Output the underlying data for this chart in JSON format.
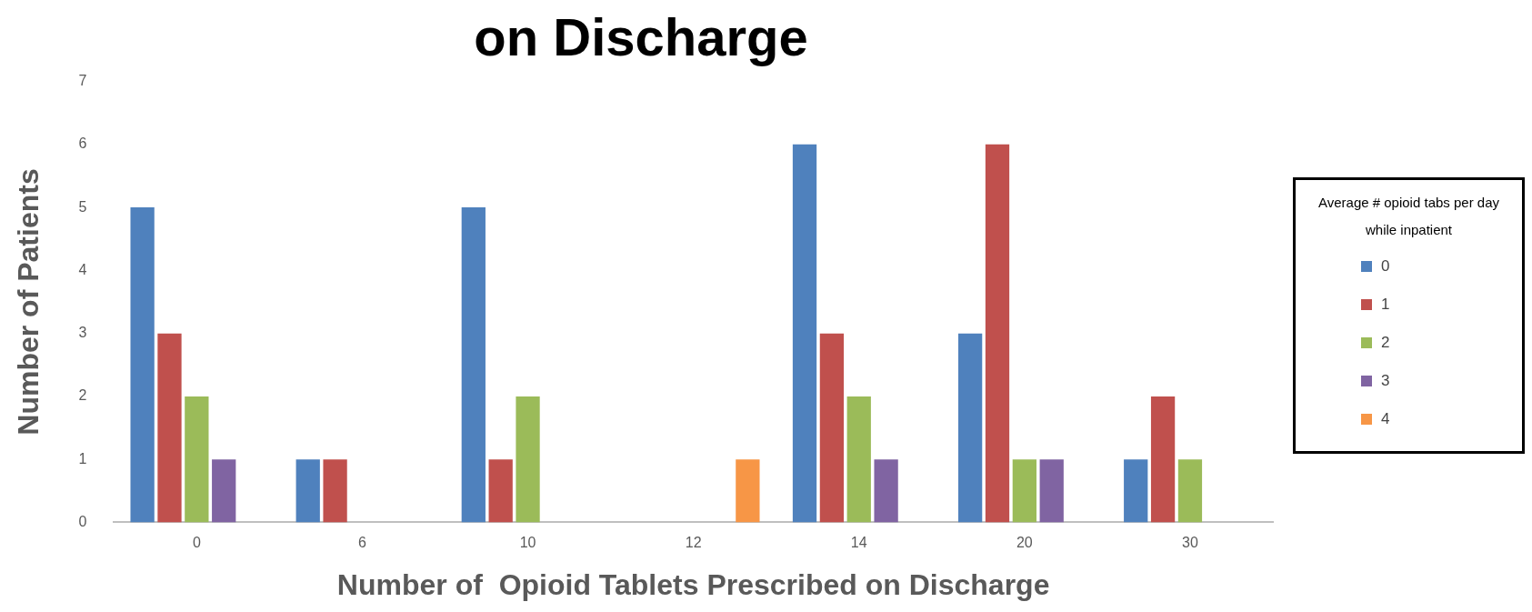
{
  "chart_data": {
    "type": "bar",
    "title": "on Discharge",
    "xlabel": "Number of  Opioid Tablets Prescribed on Discharge",
    "ylabel": "Number of Patients",
    "legend_title": "Average # opioid tabs per day while inpatient",
    "categories": [
      "0",
      "6",
      "10",
      "12",
      "14",
      "20",
      "30"
    ],
    "series": [
      {
        "name": "0",
        "color": "#4f81bd",
        "values": [
          5,
          1,
          5,
          0,
          6,
          3,
          1
        ]
      },
      {
        "name": "1",
        "color": "#c0504d",
        "values": [
          3,
          1,
          1,
          0,
          3,
          6,
          2
        ]
      },
      {
        "name": "2",
        "color": "#9bbb59",
        "values": [
          2,
          0,
          2,
          0,
          2,
          1,
          1
        ]
      },
      {
        "name": "3",
        "color": "#8064a2",
        "values": [
          1,
          0,
          0,
          0,
          1,
          1,
          0
        ]
      },
      {
        "name": "4",
        "color": "#f79646",
        "values": [
          0,
          0,
          0,
          1,
          0,
          0,
          0
        ]
      }
    ],
    "ylim": [
      0,
      7
    ],
    "yticks": [
      0,
      1,
      2,
      3,
      4,
      5,
      6,
      7
    ],
    "grid": false,
    "legend": "right"
  }
}
